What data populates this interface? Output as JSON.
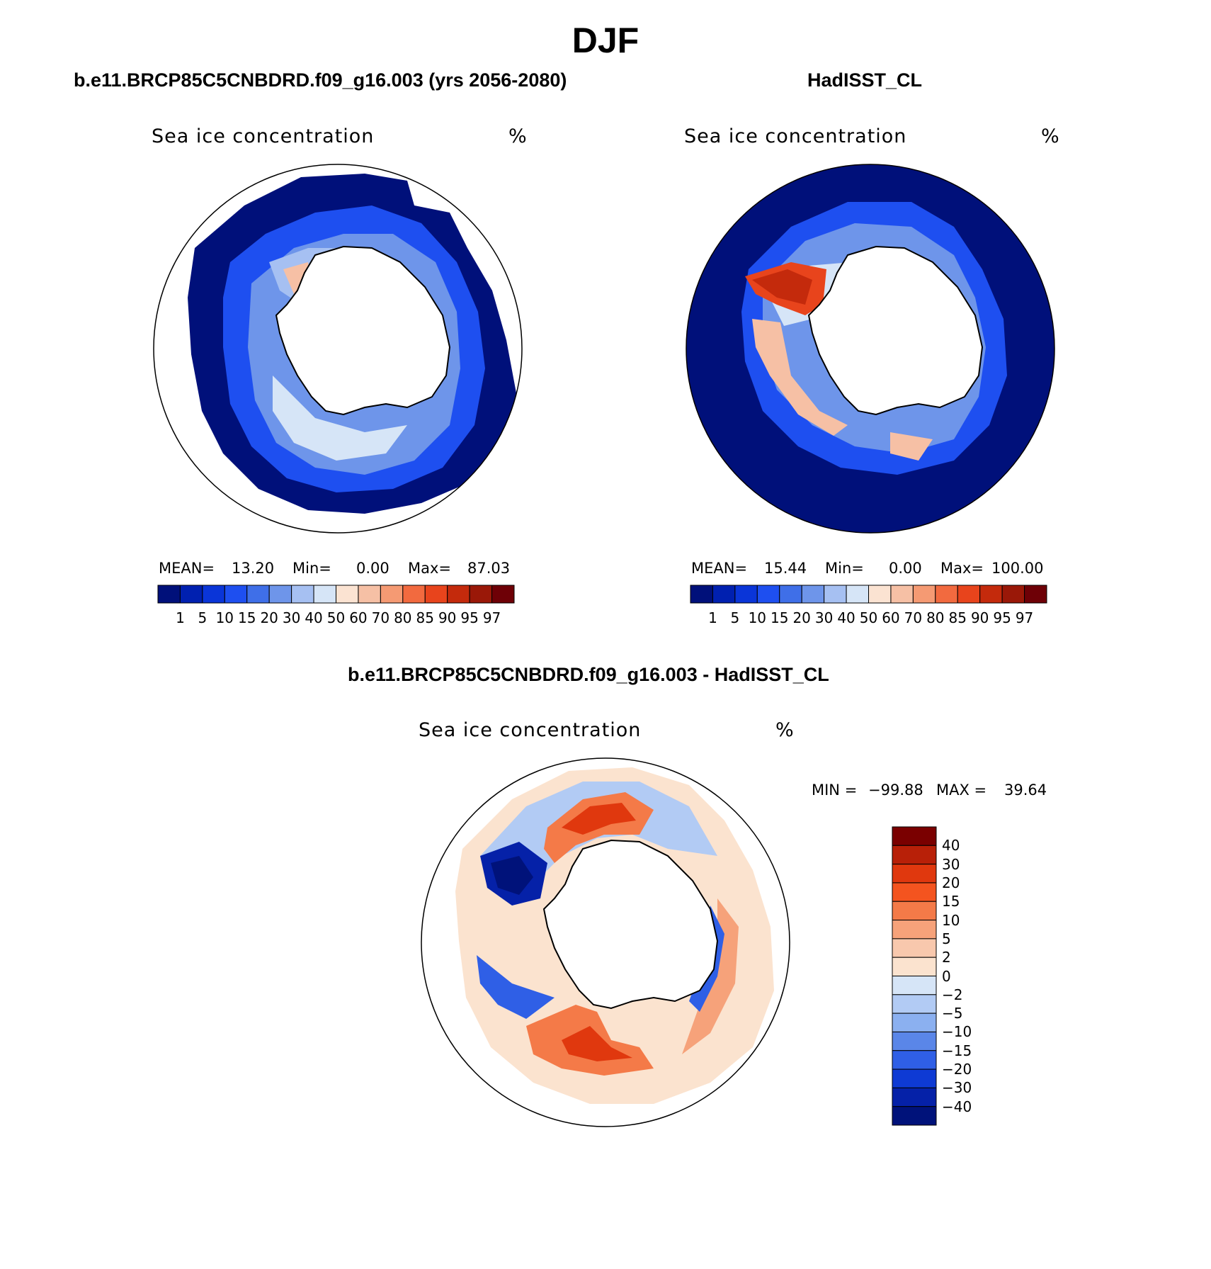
{
  "title": "DJF",
  "panels": {
    "model": {
      "heading": "b.e11.BRCP85C5CNBDRD.f09_g16.003 (yrs 2056-2080)",
      "variable": "Sea ice concentration",
      "units": "%",
      "stats": {
        "mean_label": "MEAN=",
        "mean": "13.20",
        "min_label": "Min=",
        "min": "0.00",
        "max_label": "Max=",
        "max": "87.03"
      }
    },
    "obs": {
      "heading": "HadISST_CL",
      "variable": "Sea ice concentration",
      "units": "%",
      "stats": {
        "mean_label": "MEAN=",
        "mean": "15.44",
        "min_label": "Min=",
        "min": "0.00",
        "max_label": "Max=",
        "max": "100.00"
      }
    },
    "diff": {
      "heading": "b.e11.BRCP85C5CNBDRD.f09_g16.003 - HadISST_CL",
      "variable": "Sea ice concentration",
      "units": "%",
      "minmax": {
        "min_label": "MIN =",
        "min": "−99.88",
        "max_label": "MAX =",
        "max": "39.64"
      }
    }
  },
  "colorbar_abs": {
    "ticks": [
      "1",
      "5",
      "10",
      "15",
      "20",
      "30",
      "40",
      "50",
      "60",
      "70",
      "80",
      "85",
      "90",
      "95",
      "97"
    ],
    "colors": [
      "#00107a",
      "#0020b0",
      "#0a35d8",
      "#1e4ff0",
      "#3f6fe8",
      "#6e95ea",
      "#a6c0f2",
      "#d6e5f7",
      "#fbe3d2",
      "#f6c0a5",
      "#f59a73",
      "#f26a3f",
      "#e8441c",
      "#c42a0c",
      "#9a1808",
      "#6e0006"
    ]
  },
  "colorbar_diff": {
    "ticks": [
      "40",
      "30",
      "20",
      "15",
      "10",
      "5",
      "2",
      "0",
      "−2",
      "−5",
      "−10",
      "−15",
      "−20",
      "−30",
      "−40"
    ],
    "colors": [
      "#7a0000",
      "#b82008",
      "#e0380e",
      "#f4541f",
      "#f47a48",
      "#f6a27a",
      "#f8c8ad",
      "#fbe3cf",
      "#d6e5f7",
      "#b2cbf4",
      "#8bb0f0",
      "#5a86e8",
      "#2f5fe6",
      "#0e3ad4",
      "#0521a8",
      "#00127a"
    ]
  },
  "colors": {
    "land": "#ffffff",
    "coast": "#000000",
    "ocean_open": "#ffffff",
    "ice_edge": "#00107a"
  }
}
